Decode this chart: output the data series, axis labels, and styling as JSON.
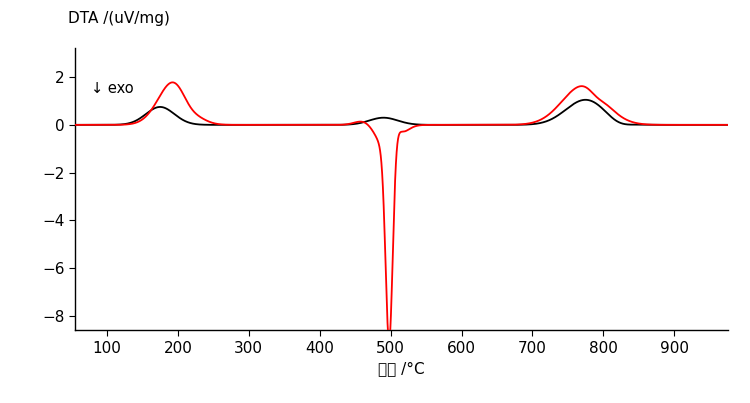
{
  "ylabel": "DTA /(uV/mg)",
  "xlabel": "温度 /°C",
  "exo_label": "↓ exo",
  "xlim": [
    55,
    975
  ],
  "ylim": [
    -8.6,
    3.2
  ],
  "yticks": [
    -8,
    -6,
    -4,
    -2,
    0,
    2
  ],
  "xticks": [
    100,
    200,
    300,
    400,
    500,
    600,
    700,
    800,
    900
  ],
  "line_color_red": "#ff0000",
  "line_color_black": "#000000",
  "background_color": "#ffffff",
  "linewidth_red": 1.3,
  "linewidth_black": 1.3
}
